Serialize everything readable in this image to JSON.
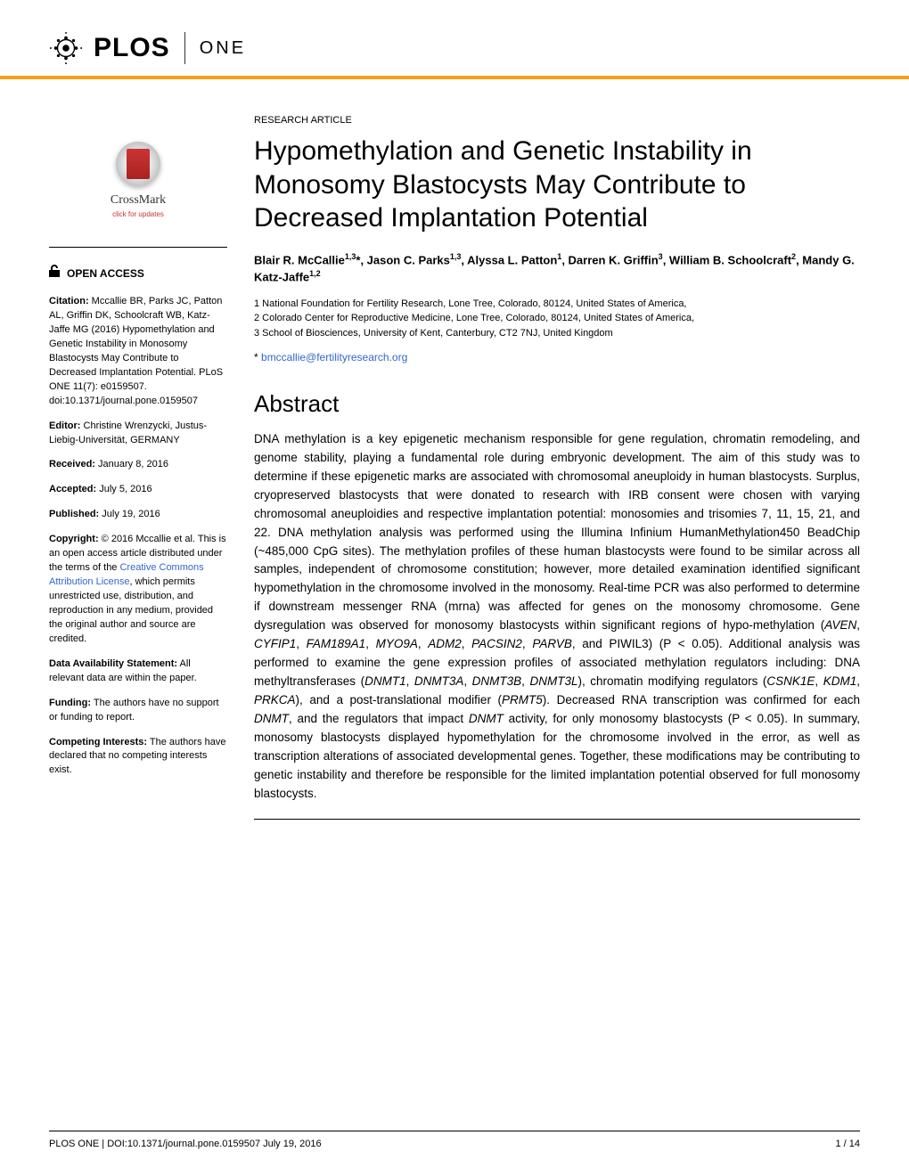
{
  "header": {
    "brand": "PLOS",
    "journal": "ONE"
  },
  "article": {
    "type": "RESEARCH ARTICLE",
    "title": "Hypomethylation and Genetic Instability in Monosomy Blastocysts May Contribute to Decreased Implantation Potential",
    "authorsHtml": "Blair R. McCallie<sup>1,3</sup>*, Jason C. Parks<sup>1,3</sup>, Alyssa L. Patton<sup>1</sup>, Darren K. Griffin<sup>3</sup>, William B. Schoolcraft<sup>2</sup>, Mandy G. Katz-Jaffe<sup>1,2</sup>",
    "affiliations": [
      "1 National Foundation for Fertility Research, Lone Tree, Colorado, 80124, United States of America,",
      "2 Colorado Center for Reproductive Medicine, Lone Tree, Colorado, 80124, United States of America,",
      "3 School of Biosciences, University of Kent, Canterbury, CT2 7NJ, United Kingdom"
    ],
    "correspondence": {
      "symbol": "*",
      "email": "bmccallie@fertilityresearch.org"
    },
    "abstractHeading": "Abstract",
    "abstractHtml": "DNA methylation is a key epigenetic mechanism responsible for gene regulation, chromatin remodeling, and genome stability, playing a fundamental role during embryonic development. The aim of this study was to determine if these epigenetic marks are associated with chromosomal aneuploidy in human blastocysts. Surplus, cryopreserved blastocysts that were donated to research with IRB consent were chosen with varying chromosomal aneuploidies and respective implantation potential: monosomies and trisomies 7, 11, 15, 21, and 22. DNA methylation analysis was performed using the Illumina Infinium HumanMethylation450 BeadChip (~485,000 CpG sites). The methylation profiles of these human blastocysts were found to be similar across all samples, independent of chromosome constitution; however, more detailed examination identified significant hypomethylation in the chromosome involved in the monosomy. Real-time PCR was also performed to determine if downstream messenger RNA (mrna) was affected for genes on the monosomy chromosome. Gene dysregulation was observed for monosomy blastocysts within significant regions of hypo-methylation (<i>AVEN</i>, <i>CYFIP1</i>, <i>FAM189A1</i>, <i>MYO9A</i>, <i>ADM2</i>, <i>PACSIN2</i>, <i>PARVB</i>, and PIWIL3) (P &lt; 0.05). Additional analysis was performed to examine the gene expression profiles of associated methylation regulators including: DNA methyltransferases (<i>DNMT1</i>, <i>DNMT3A</i>, <i>DNMT3B</i>, <i>DNMT3L</i>), chromatin modifying regulators (<i>CSNK1E</i>, <i>KDM1</i>, <i>PRKCA</i>), and a post-translational modifier (<i>PRMT5</i>). Decreased RNA transcription was confirmed for each <i>DNMT</i>, and the regulators that impact <i>DNMT</i> activity, for only monosomy blastocysts (P &lt; 0.05). In summary, monosomy blastocysts displayed hypomethylation for the chromosome involved in the error, as well as transcription alterations of associated developmental genes. Together, these modifications may be contributing to genetic instability and therefore be responsible for the limited implantation potential observed for full monosomy blastocysts."
  },
  "sidebar": {
    "crossmark": {
      "label": "CrossMark",
      "sub": "click for updates"
    },
    "openAccess": "OPEN ACCESS",
    "citation": {
      "label": "Citation:",
      "text": " Mccallie BR, Parks JC, Patton AL, Griffin DK, Schoolcraft WB, Katz-Jaffe MG (2016) Hypomethylation and Genetic Instability in Monosomy Blastocysts May Contribute to Decreased Implantation Potential. PLoS ONE 11(7): e0159507. doi:10.1371/journal.pone.0159507"
    },
    "editor": {
      "label": "Editor:",
      "text": " Christine Wrenzycki, Justus-Liebig-Universität, GERMANY"
    },
    "received": {
      "label": "Received:",
      "text": " January 8, 2016"
    },
    "accepted": {
      "label": "Accepted:",
      "text": " July 5, 2016"
    },
    "published": {
      "label": "Published:",
      "text": " July 19, 2016"
    },
    "copyright": {
      "label": "Copyright:",
      "pre": " © 2016 Mccallie et al. This is an open access article distributed under the terms of the ",
      "link": "Creative Commons Attribution License",
      "post": ", which permits unrestricted use, distribution, and reproduction in any medium, provided the original author and source are credited."
    },
    "dataAvail": {
      "label": "Data Availability Statement:",
      "text": " All relevant data are within the paper."
    },
    "funding": {
      "label": "Funding:",
      "text": " The authors have no support or funding to report."
    },
    "competing": {
      "label": "Competing Interests:",
      "text": " The authors have declared that no competing interests exist."
    }
  },
  "footer": {
    "left": "PLOS ONE | DOI:10.1371/journal.pone.0159507    July 19, 2016",
    "right": "1 / 14"
  },
  "colors": {
    "accent": "#f6a01a",
    "link": "#3366cc",
    "text": "#000000",
    "background": "#ffffff"
  }
}
